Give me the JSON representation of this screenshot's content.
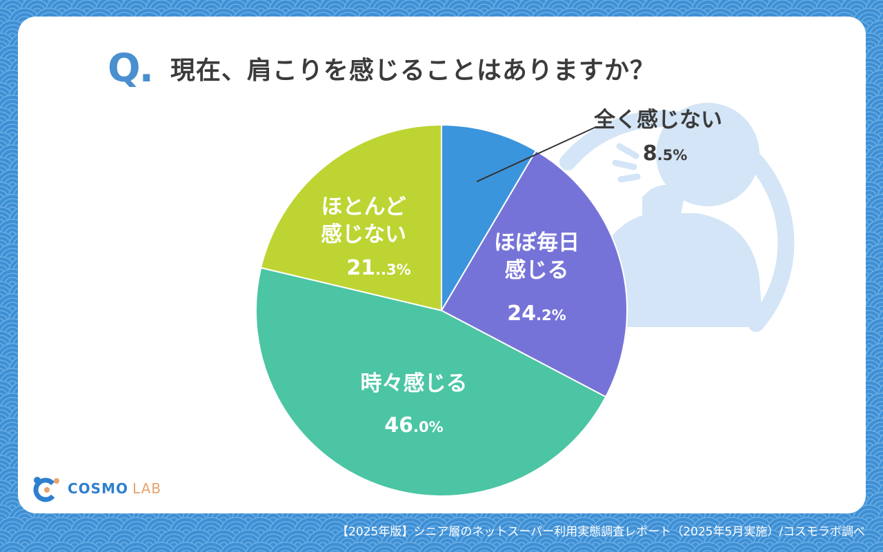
{
  "header": {
    "q_mark": "Q.",
    "question": "現在、肩こりを感じることはありますか？"
  },
  "chart_data": {
    "type": "pie",
    "title": "現在、肩こりを感じることはありますか？",
    "slices": [
      {
        "label_lines": [
          "全く感じない"
        ],
        "value": 8.5,
        "value_label": "8.5%",
        "color": "#3b95dd"
      },
      {
        "label_lines": [
          "ほぼ毎日",
          "感じる"
        ],
        "value": 24.2,
        "value_label": "24.2%",
        "color": "#7673d8"
      },
      {
        "label_lines": [
          "時々感じる"
        ],
        "value": 46.0,
        "value_label": "46.0%",
        "color": "#4bc5a3"
      },
      {
        "label_lines": [
          "ほとんど",
          "感じない"
        ],
        "value": 21.3,
        "value_label": "21..3%",
        "color": "#bdd432"
      }
    ],
    "unit": "%"
  },
  "logo": {
    "name": "COSMO",
    "suffix": "LAB"
  },
  "footer": {
    "source": "【2025年版】シニア層のネットスーパー利用実態調査レポート（2025年5月実施）/コスモラボ調べ"
  }
}
